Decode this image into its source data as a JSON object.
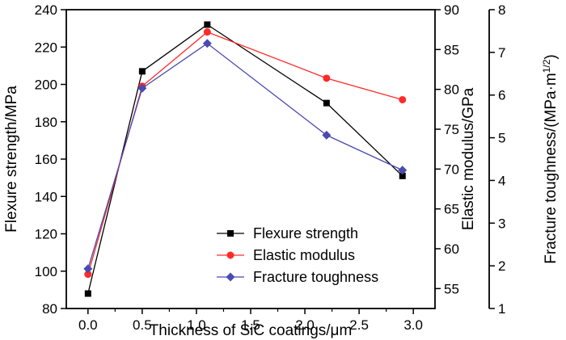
{
  "chart_data": {
    "type": "line",
    "xlabel": "Thickness of SiC coatings/μm",
    "x_ticks": [
      "0.0",
      "0.5",
      "1.0",
      "1.5",
      "2.0",
      "2.5",
      "3.0"
    ],
    "xlim": [
      -0.2,
      3.2
    ],
    "axes": {
      "left": {
        "label": "Flexure strength/MPa",
        "lim": [
          80,
          240
        ],
        "ticks": [
          "80",
          "100",
          "120",
          "140",
          "160",
          "180",
          "200",
          "220",
          "240"
        ]
      },
      "right1": {
        "label": "Elastic modulus/GPa",
        "lim": [
          52.5,
          90
        ],
        "ticks": [
          "55",
          "60",
          "65",
          "70",
          "75",
          "80",
          "85",
          "90"
        ]
      },
      "right2": {
        "label_main": "Fracture toughness/(MPa·m",
        "label_sup": "1/2",
        "label_end": ")",
        "lim": [
          1,
          8
        ],
        "ticks": [
          "1",
          "2",
          "3",
          "4",
          "5",
          "6",
          "7",
          "8"
        ]
      }
    },
    "series": [
      {
        "name": "Flexure strength",
        "axis": "left",
        "color": "#000000",
        "marker": "square",
        "x": [
          0.0,
          0.5,
          1.1,
          2.2,
          2.9
        ],
        "y": [
          88,
          207,
          232,
          190,
          151
        ]
      },
      {
        "name": "Elastic modulus",
        "axis": "right1",
        "color": "#ff2a2a",
        "marker": "circle",
        "x": [
          0.0,
          0.5,
          1.1,
          2.2,
          2.9
        ],
        "y": [
          56.8,
          80.4,
          87.2,
          81.4,
          78.7
        ]
      },
      {
        "name": "Fracture toughness",
        "axis": "right2",
        "color": "#4a4ab0",
        "marker": "diamond",
        "x": [
          0.0,
          0.5,
          1.1,
          2.2,
          2.9
        ],
        "y": [
          1.93,
          6.16,
          7.21,
          5.06,
          4.24
        ]
      }
    ],
    "legend_position": "lower-right"
  }
}
